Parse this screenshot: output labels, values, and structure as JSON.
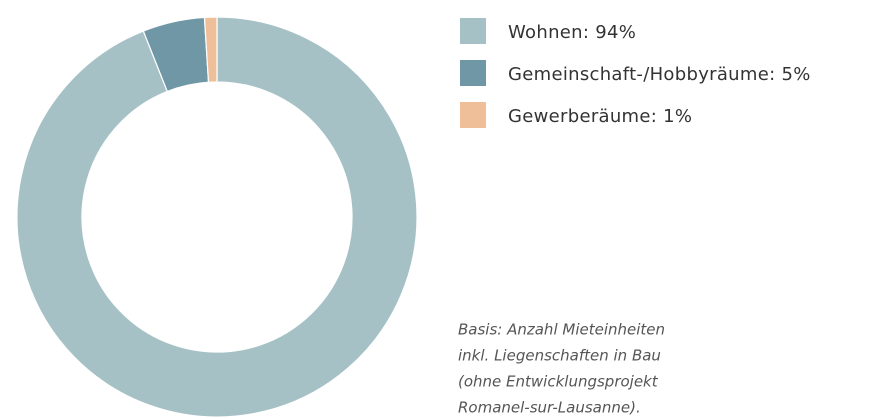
{
  "chart_data": {
    "type": "donut",
    "categories": [
      "Wohnen: 94%",
      "Gemeinschaft-/Hobbyräume: 5%",
      "Gewerberäume: 1%"
    ],
    "values": [
      94,
      5,
      1
    ],
    "colors": [
      "#a5c1c5",
      "#6f97a5",
      "#efbf9a"
    ],
    "note": [
      "Basis: Anzahl Mieteinheiten",
      "inkl. Liegenschaften in Bau",
      "(ohne Entwicklungsprojekt",
      "Romanel-sur-Lausanne)."
    ]
  }
}
